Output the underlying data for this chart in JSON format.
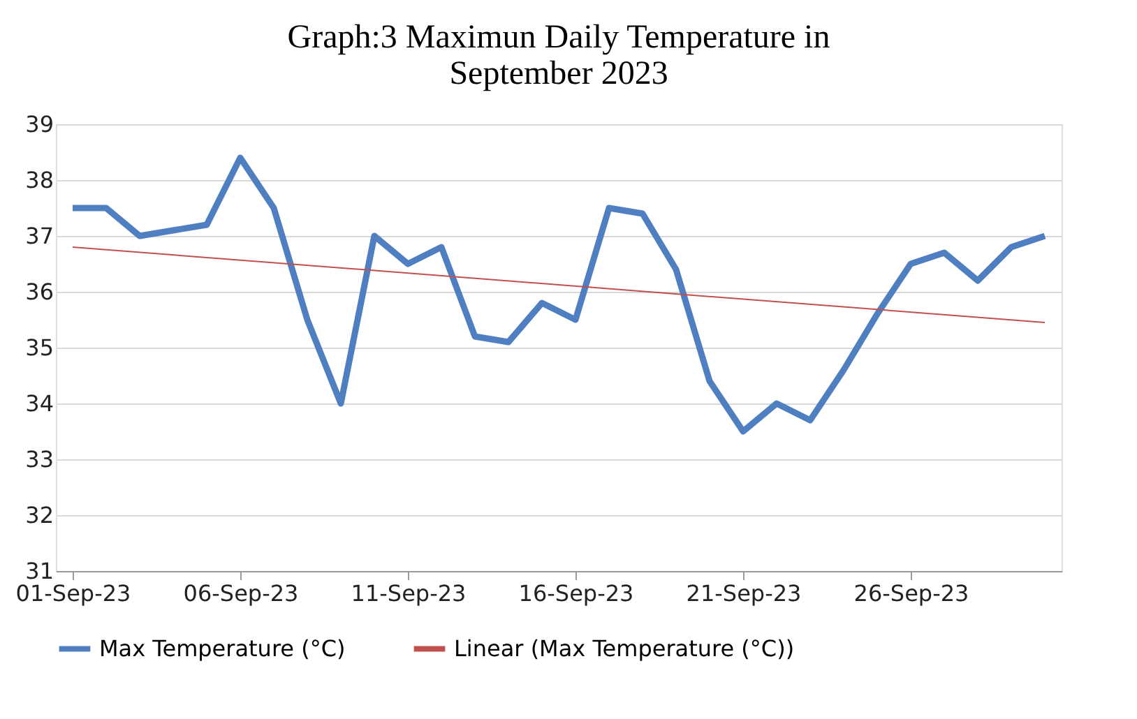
{
  "chart_data": {
    "type": "line",
    "title": [
      "Graph:3 Maximun Daily Temperature in",
      "September 2023"
    ],
    "x": [
      "2023-09-01",
      "2023-09-02",
      "2023-09-03",
      "2023-09-04",
      "2023-09-05",
      "2023-09-06",
      "2023-09-07",
      "2023-09-08",
      "2023-09-09",
      "2023-09-10",
      "2023-09-11",
      "2023-09-12",
      "2023-09-13",
      "2023-09-14",
      "2023-09-15",
      "2023-09-16",
      "2023-09-17",
      "2023-09-18",
      "2023-09-19",
      "2023-09-20",
      "2023-09-21",
      "2023-09-22",
      "2023-09-23",
      "2023-09-24",
      "2023-09-25",
      "2023-09-26",
      "2023-09-27",
      "2023-09-28",
      "2023-09-29",
      "2023-09-30"
    ],
    "series": [
      {
        "name": "Max Temperature (°C)",
        "color": "#4f7fc0",
        "values": [
          37.5,
          37.5,
          37.0,
          37.1,
          37.2,
          38.4,
          37.5,
          35.5,
          34.0,
          37.0,
          36.5,
          36.8,
          35.2,
          35.1,
          35.8,
          35.5,
          37.5,
          37.4,
          36.4,
          34.4,
          33.5,
          34.0,
          33.7,
          34.6,
          35.6,
          36.5,
          36.7,
          36.2,
          36.8,
          37.0
        ]
      },
      {
        "name": "Linear (Max Temperature (°C))",
        "color": "#c0504d",
        "x": [
          "2023-09-01",
          "2023-09-30"
        ],
        "values": [
          36.8,
          35.45
        ]
      }
    ],
    "xlim": [
      "2023-08-31T12:00",
      "2023-09-30T12:00"
    ],
    "xticks": [
      {
        "value": "2023-09-01",
        "label": "01-Sep-23"
      },
      {
        "value": "2023-09-06",
        "label": "06-Sep-23"
      },
      {
        "value": "2023-09-11",
        "label": "11-Sep-23"
      },
      {
        "value": "2023-09-16",
        "label": "16-Sep-23"
      },
      {
        "value": "2023-09-21",
        "label": "21-Sep-23"
      },
      {
        "value": "2023-09-26",
        "label": "26-Sep-23"
      }
    ],
    "ylim": [
      31,
      39
    ],
    "yticks": [
      31,
      32,
      33,
      34,
      35,
      36,
      37,
      38,
      39
    ],
    "grid": "y",
    "legend": "bottom",
    "marker": "none",
    "line_style": "solid"
  }
}
